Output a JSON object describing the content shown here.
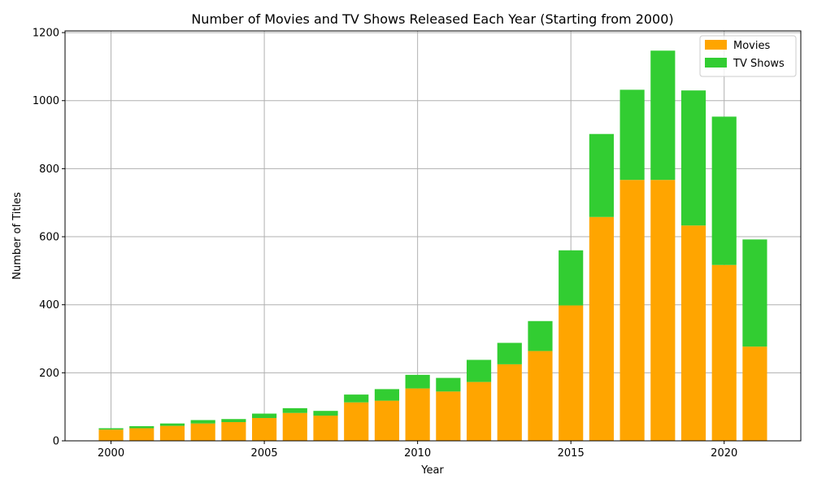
{
  "chart_data": {
    "type": "bar",
    "stacked": true,
    "title": "Number of Movies and TV Shows Released Each Year (Starting from 2000)",
    "xlabel": "Year",
    "ylabel": "Number of Titles",
    "categories": [
      2000,
      2001,
      2002,
      2003,
      2004,
      2005,
      2006,
      2007,
      2008,
      2009,
      2010,
      2011,
      2012,
      2013,
      2014,
      2015,
      2016,
      2017,
      2018,
      2019,
      2020,
      2021
    ],
    "series": [
      {
        "name": "Movies",
        "color": "#ffa500",
        "values": [
          33,
          37,
          44,
          51,
          55,
          67,
          82,
          74,
          113,
          118,
          154,
          145,
          173,
          225,
          264,
          398,
          658,
          767,
          767,
          633,
          517,
          277
        ]
      },
      {
        "name": "TV Shows",
        "color": "#32cd32",
        "values": [
          4,
          6,
          7,
          10,
          9,
          13,
          14,
          14,
          23,
          34,
          40,
          40,
          65,
          63,
          88,
          162,
          244,
          265,
          380,
          397,
          436,
          315
        ]
      }
    ],
    "xlim": [
      1998.5,
      2022.5
    ],
    "ylim": [
      0,
      1205
    ],
    "xticks": [
      2000,
      2005,
      2010,
      2015,
      2020
    ],
    "yticks": [
      0,
      200,
      400,
      600,
      800,
      1000,
      1200
    ],
    "grid": true,
    "legend_position": "top-right"
  }
}
